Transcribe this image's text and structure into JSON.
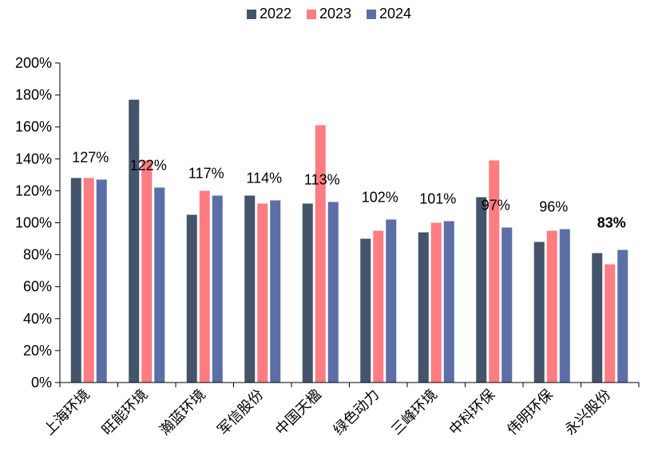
{
  "chart_data": {
    "type": "bar",
    "categories": [
      "上海环境",
      "旺能环境",
      "瀚蓝环境",
      "军信股份",
      "中国天楹",
      "绿色动力",
      "三峰环境",
      "中科环保",
      "伟明环保",
      "永兴股份"
    ],
    "series": [
      {
        "name": "2022",
        "color": "#44546A",
        "values": [
          128,
          177,
          105,
          117,
          112,
          90,
          94,
          116,
          88,
          81
        ]
      },
      {
        "name": "2023",
        "color": "#FF7C80",
        "values": [
          128,
          139,
          120,
          112,
          161,
          95,
          100,
          139,
          95,
          74
        ]
      },
      {
        "name": "2024",
        "color": "#5B6FA6",
        "values": [
          127,
          122,
          117,
          114,
          113,
          102,
          101,
          97,
          96,
          83
        ]
      }
    ],
    "value_labels": [
      "127%",
      "122%",
      "117%",
      "114%",
      "113%",
      "102%",
      "101%",
      "97%",
      "96%",
      "83%"
    ],
    "highlight": {
      "index": 9,
      "color": "#C00000"
    },
    "yticks": [
      "0%",
      "20%",
      "40%",
      "60%",
      "80%",
      "100%",
      "120%",
      "140%",
      "160%",
      "180%",
      "200%"
    ],
    "ylim": [
      0,
      200
    ],
    "legend_position": "top",
    "grid": false,
    "xlabel": "",
    "ylabel": ""
  }
}
